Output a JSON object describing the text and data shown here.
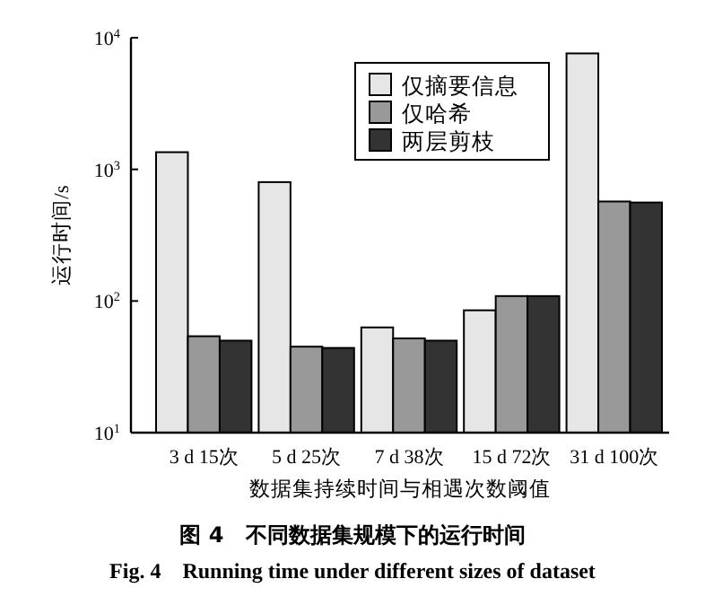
{
  "chart_data": {
    "type": "bar",
    "title": "图 4　不同数据集规模下的运行时间",
    "subtitle": "Fig. 4　Running time under different sizes of dataset",
    "xlabel": "数据集持续时间与相遇次数阈值",
    "ylabel": "运行时间/s",
    "categories": [
      "3 d 15次",
      "5 d 25次",
      "7 d 38次",
      "15 d 72次",
      "31 d 100次"
    ],
    "series": [
      {
        "name": "仅摘要信息",
        "color": "#e6e6e6",
        "values": [
          1350,
          800,
          63,
          85,
          7600
        ]
      },
      {
        "name": "仅哈希",
        "color": "#999999",
        "values": [
          54,
          45,
          52,
          109,
          570
        ]
      },
      {
        "name": "两层剪枝",
        "color": "#333333",
        "values": [
          50,
          44,
          50,
          109,
          560
        ]
      }
    ],
    "log": "y",
    "ylim": [
      10,
      10000
    ],
    "yticks": [
      {
        "value": 10,
        "label": "10$^{1}$"
      },
      {
        "value": 100,
        "label": "10$^{2}$"
      },
      {
        "value": 1000,
        "label": "10$^{3}$"
      },
      {
        "value": 10000,
        "label": "10$^{4}$"
      }
    ],
    "legend": "top right",
    "grid": false
  }
}
